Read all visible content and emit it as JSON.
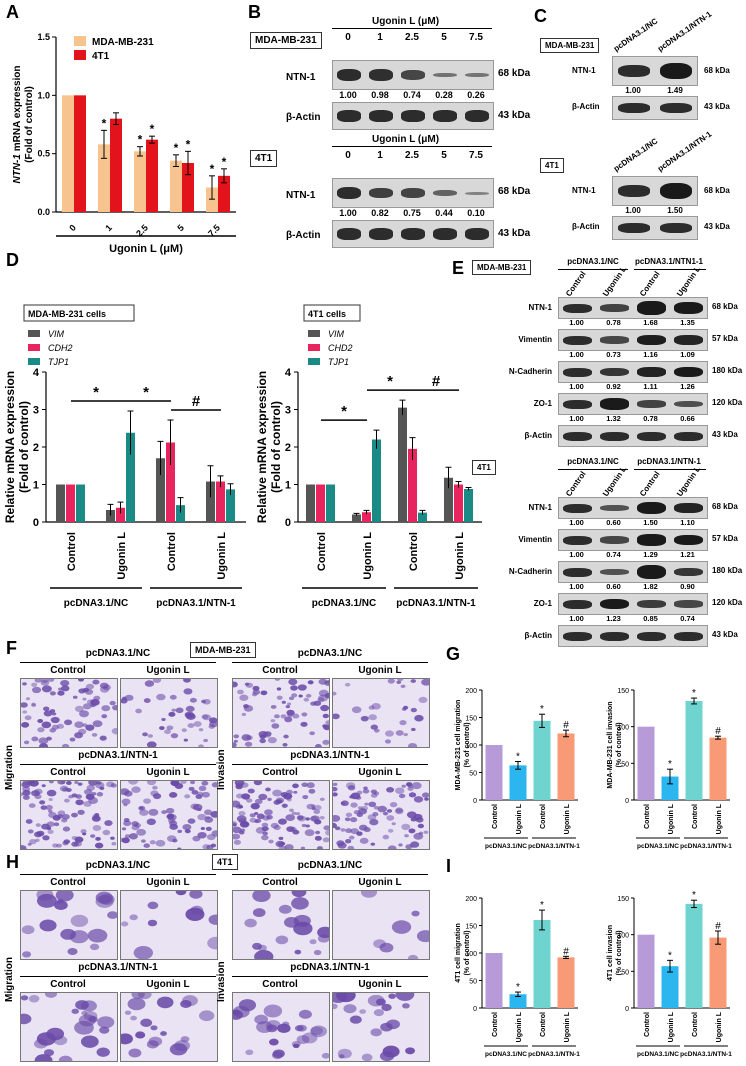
{
  "panels": {
    "A": "A",
    "B": "B",
    "C": "C",
    "D": "D",
    "E": "E",
    "F": "F",
    "G": "G",
    "H": "H",
    "I": "I"
  },
  "colors": {
    "mda": "#f7c48f",
    "t4": "#e3131b",
    "vim": "#555555",
    "cdh2": "#e8245e",
    "tjp1": "#1a8a86",
    "control": "#b79bd8",
    "ugonin": "#2bb6ef",
    "ntn_control": "#6fd3d0",
    "ntn_ugonin": "#f79a75",
    "micro_bg": "#e9e3f3",
    "micro_cell": "#6a4aa8"
  },
  "chart_data": [
    {
      "id": "A",
      "type": "bar",
      "ylabel_italic": "NTN-1",
      "ylabel_rest": " mRNA expression",
      "ylabel2": "(Fold of control)",
      "xlabel": "Ugonin L (μM)",
      "categories": [
        "0",
        "1",
        "2.5",
        "5",
        "7.5"
      ],
      "ylim": [
        0,
        1.5
      ],
      "yticks": [
        "0.0",
        "0.5",
        "1.0",
        "1.5"
      ],
      "ytick_values": [
        0,
        0.5,
        1.0,
        1.5
      ],
      "series": [
        {
          "name": "MDA-MB-231",
          "values": [
            1.0,
            0.58,
            0.52,
            0.44,
            0.21
          ],
          "errors": [
            0,
            0.12,
            0.04,
            0.05,
            0.1
          ],
          "sig": [
            "",
            "*",
            "*",
            "*",
            "*"
          ]
        },
        {
          "name": "4T1",
          "values": [
            1.0,
            0.8,
            0.62,
            0.42,
            0.31
          ],
          "errors": [
            0,
            0.05,
            0.03,
            0.1,
            0.06
          ],
          "sig": [
            "",
            "",
            "*",
            "*",
            "*"
          ]
        }
      ]
    },
    {
      "id": "D1",
      "type": "bar",
      "title": "MDA-MB-231 cells",
      "ylabel": "Relative mRNA expression",
      "ylabel2": "(Fold of control)",
      "categories": [
        "Control",
        "Ugonin L",
        "Control",
        "Ugonin L"
      ],
      "groups": [
        "pcDNA3.1/NC",
        "pcDNA3.1/NTN-1"
      ],
      "ylim": [
        0,
        4
      ],
      "yticks": [
        "0",
        "1",
        "2",
        "3",
        "4"
      ],
      "ytick_values": [
        0,
        1,
        2,
        3,
        4
      ],
      "series": [
        {
          "name": "VIM",
          "values": [
            1.0,
            0.32,
            1.7,
            1.08
          ],
          "errors": [
            0,
            0.15,
            0.45,
            0.42
          ]
        },
        {
          "name": "CDH2",
          "values": [
            1.0,
            0.38,
            2.12,
            1.08
          ],
          "errors": [
            0,
            0.15,
            0.6,
            0.15
          ]
        },
        {
          "name": "TJP1",
          "values": [
            1.0,
            2.38,
            0.45,
            0.87
          ],
          "errors": [
            0,
            0.58,
            0.2,
            0.15
          ]
        }
      ],
      "annotations": [
        "*",
        "*",
        "#"
      ]
    },
    {
      "id": "D2",
      "type": "bar",
      "title": "4T1 cells",
      "ylabel": "Relative mRNA expression",
      "ylabel2": "(Fold of control)",
      "categories": [
        "Control",
        "Ugonin L",
        "Control",
        "Ugonin L"
      ],
      "groups": [
        "pcDNA3.1/NC",
        "pcDNA3.1/NTN-1"
      ],
      "ylim": [
        0,
        4
      ],
      "yticks": [
        "0",
        "1",
        "2",
        "3",
        "4"
      ],
      "ytick_values": [
        0,
        1,
        2,
        3,
        4
      ],
      "series": [
        {
          "name": "VIM",
          "values": [
            1.0,
            0.2,
            3.05,
            1.18
          ],
          "errors": [
            0,
            0.03,
            0.2,
            0.28
          ]
        },
        {
          "name": "CHD2",
          "values": [
            1.0,
            0.26,
            1.95,
            1.0
          ],
          "errors": [
            0,
            0.05,
            0.3,
            0.08
          ]
        },
        {
          "name": "TJP1",
          "values": [
            1.0,
            2.2,
            0.25,
            0.88
          ],
          "errors": [
            0,
            0.25,
            0.06,
            0.04
          ]
        }
      ],
      "annotations": [
        "*",
        "*",
        "#"
      ]
    },
    {
      "id": "G1",
      "type": "bar",
      "ylabel": "MDA-MB-231 cell migration",
      "ylabel2": "(% of control)",
      "categories": [
        "Control",
        "Ugonin L",
        "Control",
        "Ugonin L"
      ],
      "groups": [
        "pcDNA3.1/NC",
        "pcDNA3.1/NTN-1"
      ],
      "ylim": [
        0,
        200
      ],
      "yticks": [
        "0",
        "50",
        "100",
        "150",
        "200"
      ],
      "ytick_values": [
        0,
        50,
        100,
        150,
        200
      ],
      "values": [
        100,
        63,
        144,
        121
      ],
      "errors": [
        0,
        7,
        12,
        6
      ],
      "sig": [
        "",
        "*",
        "*",
        "#"
      ]
    },
    {
      "id": "G2",
      "type": "bar",
      "ylabel": "MDA-MB-231 cell invasion",
      "ylabel2": "(% of control)",
      "categories": [
        "Control",
        "Ugonin L",
        "Control",
        "Ugonin L"
      ],
      "groups": [
        "pcDNA3.1/NC",
        "pcDNA3.1/NTN-1"
      ],
      "ylim": [
        0,
        150
      ],
      "yticks": [
        "0",
        "50",
        "100",
        "150"
      ],
      "ytick_values": [
        0,
        50,
        100,
        150
      ],
      "values": [
        100,
        32,
        135,
        85
      ],
      "errors": [
        0,
        10,
        4,
        2
      ],
      "sig": [
        "",
        "*",
        "*",
        "#"
      ]
    },
    {
      "id": "I1",
      "type": "bar",
      "ylabel": "4T1 cell migration",
      "ylabel2": "(% of control)",
      "categories": [
        "Control",
        "Ugonin L",
        "Control",
        "Ugonin L"
      ],
      "groups": [
        "pcDNA3.1/NC",
        "pcDNA3.1/NTN-1"
      ],
      "ylim": [
        0,
        200
      ],
      "yticks": [
        "0",
        "50",
        "100",
        "150",
        "200"
      ],
      "ytick_values": [
        0,
        50,
        100,
        150,
        200
      ],
      "values": [
        100,
        25,
        160,
        92
      ],
      "errors": [
        0,
        4,
        18,
        2
      ],
      "sig": [
        "",
        "*",
        "*",
        "#"
      ]
    },
    {
      "id": "I2",
      "type": "bar",
      "ylabel": "4T1 cell invasion",
      "ylabel2": "(% of control)",
      "categories": [
        "Control",
        "Ugonin L",
        "Control",
        "Ugonin L"
      ],
      "groups": [
        "pcDNA3.1/NC",
        "pcDNA3.1/NTN-1"
      ],
      "ylim": [
        0,
        150
      ],
      "yticks": [
        "0",
        "50",
        "100",
        "150"
      ],
      "ytick_values": [
        0,
        50,
        100,
        150
      ],
      "values": [
        100,
        57,
        142,
        96
      ],
      "errors": [
        0,
        8,
        5,
        9
      ],
      "sig": [
        "",
        "*",
        "*",
        "#"
      ]
    }
  ],
  "blotB": {
    "title": "Ugonin L (μM)",
    "concs": [
      "0",
      "1",
      "2.5",
      "5",
      "7.5"
    ],
    "mda": {
      "cell": "MDA-MB-231",
      "target": "NTN-1",
      "target_kda": "68 kDa",
      "loading": "β-Actin",
      "loading_kda": "43 kDa",
      "densities": [
        "1.00",
        "0.98",
        "0.74",
        "0.28",
        "0.26"
      ],
      "levels": [
        1.0,
        0.98,
        0.74,
        0.28,
        0.26
      ]
    },
    "t4": {
      "cell": "4T1",
      "target": "NTN-1",
      "target_kda": "68 kDa",
      "loading": "β-Actin",
      "loading_kda": "43 kDa",
      "densities": [
        "1.00",
        "0.82",
        "0.75",
        "0.44",
        "0.10"
      ],
      "levels": [
        1.0,
        0.82,
        0.75,
        0.44,
        0.1
      ]
    }
  },
  "blotC": {
    "cols": [
      "pcDNA3.1/NC",
      "pcDNA3.1/NTN-1"
    ],
    "mda": {
      "cell": "MDA-MB-231",
      "target": "NTN-1",
      "target_kda": "68 kDa",
      "loading": "β-Actin",
      "loading_kda": "43 kDa",
      "densities": [
        "1.00",
        "1.49"
      ],
      "levels": [
        1.0,
        1.49
      ]
    },
    "t4": {
      "cell": "4T1",
      "target": "NTN-1",
      "target_kda": "68 kDa",
      "loading": "β-Actin",
      "loading_kda": "43 kDa",
      "densities": [
        "1.00",
        "1.50"
      ],
      "levels": [
        1.0,
        1.5
      ]
    }
  },
  "blotE": {
    "groups": [
      "pcDNA3.1/NC",
      "pcDNA3.1/NTN-1"
    ],
    "group_mda_2": "pcDNA3.1/NTN1-1",
    "lanes": [
      "Control",
      "Ugonin L",
      "Control",
      "Ugonin L"
    ],
    "mda": {
      "cell": "MDA-MB-231",
      "rows": [
        {
          "name": "NTN-1",
          "kda": "68 kDa",
          "dens": [
            "1.00",
            "0.78",
            "1.68",
            "1.35"
          ]
        },
        {
          "name": "Vimentin",
          "kda": "57 kDa",
          "dens": [
            "1.00",
            "0.73",
            "1.16",
            "1.09"
          ]
        },
        {
          "name": "N-Cadherin",
          "kda": "180 kDa",
          "dens": [
            "1.00",
            "0.92",
            "1.11",
            "1.26"
          ]
        },
        {
          "name": "ZO-1",
          "kda": "120 kDa",
          "dens": [
            "1.00",
            "1.32",
            "0.78",
            "0.66"
          ]
        },
        {
          "name": "β-Actin",
          "kda": "43 kDa",
          "dens": []
        }
      ]
    },
    "t4": {
      "cell": "4T1",
      "rows": [
        {
          "name": "NTN-1",
          "kda": "68 kDa",
          "dens": [
            "1.00",
            "0.60",
            "1.50",
            "1.10"
          ]
        },
        {
          "name": "Vimentin",
          "kda": "57 kDa",
          "dens": [
            "1.00",
            "0.74",
            "1.29",
            "1.21"
          ]
        },
        {
          "name": "N-Cadherin",
          "kda": "180 kDa",
          "dens": [
            "1.00",
            "0.60",
            "1.82",
            "0.90"
          ]
        },
        {
          "name": "ZO-1",
          "kda": "120 kDa",
          "dens": [
            "1.00",
            "1.23",
            "0.85",
            "0.74"
          ]
        },
        {
          "name": "β-Actin",
          "kda": "43 kDa",
          "dens": []
        }
      ]
    }
  },
  "micro": {
    "F": {
      "cell": "MDA-MB-231",
      "nc": "pcDNA3.1/NC",
      "ntn": "pcDNA3.1/NTN-1",
      "control": "Control",
      "ugonin": "Ugonin L",
      "migration": "Migration",
      "invasion": "Invasion"
    },
    "H": {
      "cell": "4T1",
      "nc": "pcDNA3.1/NC",
      "ntn": "pcDNA3.1/NTN-1",
      "control": "Control",
      "ugonin": "Ugonin L",
      "migration": "Migration",
      "invasion": "Invasion"
    }
  }
}
